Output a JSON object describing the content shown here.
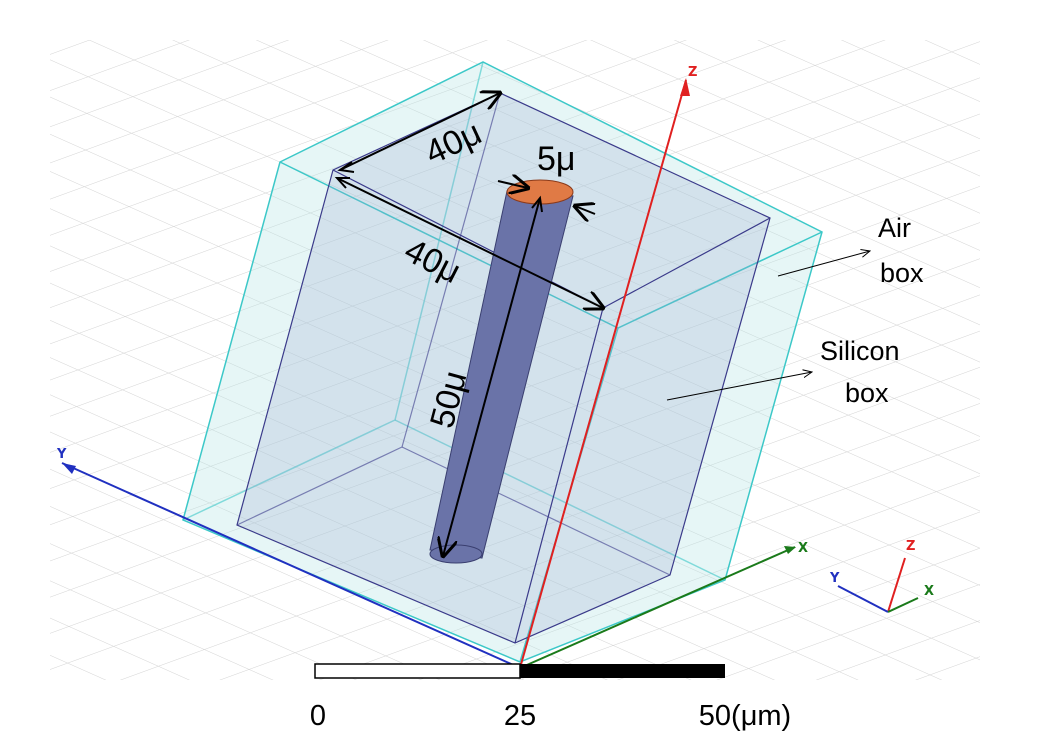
{
  "dimensions": {
    "top_width": "40μ",
    "top_depth": "40μ",
    "diameter": "5μ",
    "height": "50μ"
  },
  "labels": {
    "air_box": [
      "Air",
      "box"
    ],
    "silicon_box": [
      "Silicon",
      "box"
    ]
  },
  "axes": {
    "z": "Z",
    "y": "Y",
    "x": "X"
  },
  "triad": {
    "z": "Z",
    "y": "Y",
    "x": "X"
  },
  "scale_bar": {
    "ticks": [
      "0",
      "25",
      "50(μm)"
    ]
  }
}
